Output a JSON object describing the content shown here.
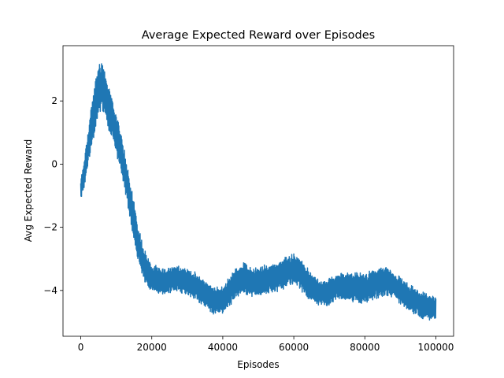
{
  "chart_data": {
    "type": "line",
    "title": "Average Expected Reward over Episodes",
    "xlabel": "Episodes",
    "ylabel": "Avg Expected Reward",
    "xlim": [
      -5000,
      105000
    ],
    "ylim": [
      -5.45,
      3.75
    ],
    "grid": false,
    "legend": "none",
    "series_color": "#1f77b4",
    "xticks": [
      0,
      20000,
      40000,
      60000,
      80000,
      100000
    ],
    "xtick_labels": [
      "0",
      "20000",
      "40000",
      "60000",
      "80000",
      "100000"
    ],
    "yticks": [
      2,
      0,
      -2,
      -4
    ],
    "ytick_labels": [
      "2",
      "0",
      "−2",
      "−4"
    ],
    "series": [
      {
        "x": [
          0,
          1000,
          2000,
          3000,
          4000,
          5000,
          6000,
          7000,
          8000,
          9000,
          10000,
          11000,
          12000,
          13000,
          14000,
          15000,
          16000,
          17000,
          18000,
          19000,
          20000,
          22000,
          24000,
          26000,
          28000,
          30000,
          32000,
          34000,
          36000,
          38000,
          40000,
          42000,
          44000,
          46000,
          48000,
          50000,
          52000,
          54000,
          56000,
          58000,
          60000,
          62000,
          64000,
          66000,
          68000,
          70000,
          72000,
          74000,
          76000,
          78000,
          80000,
          82000,
          84000,
          86000,
          88000,
          90000,
          92000,
          94000,
          96000,
          98000,
          100000
        ],
        "center": [
          -0.8,
          -0.3,
          0.4,
          1.2,
          1.8,
          2.4,
          2.5,
          2.2,
          1.7,
          1.4,
          1.0,
          0.5,
          0.0,
          -0.6,
          -1.2,
          -1.8,
          -2.4,
          -2.9,
          -3.2,
          -3.45,
          -3.6,
          -3.7,
          -3.75,
          -3.6,
          -3.65,
          -3.75,
          -3.85,
          -4.0,
          -4.2,
          -4.35,
          -4.3,
          -4.0,
          -3.75,
          -3.6,
          -3.75,
          -3.75,
          -3.65,
          -3.6,
          -3.55,
          -3.4,
          -3.3,
          -3.5,
          -3.8,
          -4.0,
          -4.1,
          -4.05,
          -3.9,
          -3.85,
          -3.9,
          -3.9,
          -3.95,
          -3.85,
          -3.75,
          -3.7,
          -3.85,
          -4.0,
          -4.2,
          -4.35,
          -4.45,
          -4.55,
          -4.55
        ],
        "spread": [
          0.25,
          0.5,
          0.55,
          0.65,
          0.75,
          0.8,
          0.75,
          0.7,
          0.65,
          0.6,
          0.6,
          0.6,
          0.6,
          0.6,
          0.6,
          0.6,
          0.55,
          0.55,
          0.5,
          0.45,
          0.4,
          0.4,
          0.4,
          0.4,
          0.4,
          0.4,
          0.4,
          0.4,
          0.4,
          0.4,
          0.4,
          0.45,
          0.45,
          0.45,
          0.45,
          0.45,
          0.45,
          0.45,
          0.45,
          0.45,
          0.45,
          0.45,
          0.45,
          0.4,
          0.35,
          0.4,
          0.4,
          0.4,
          0.4,
          0.45,
          0.45,
          0.45,
          0.45,
          0.45,
          0.4,
          0.4,
          0.4,
          0.4,
          0.4,
          0.35,
          0.35
        ]
      }
    ]
  }
}
